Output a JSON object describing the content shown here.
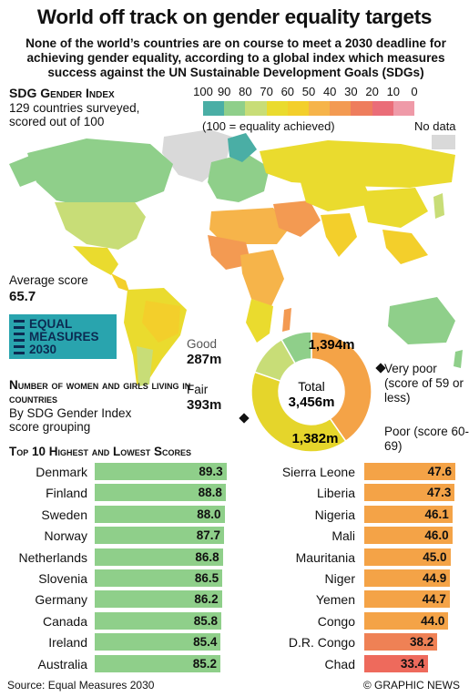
{
  "title": "World off track on gender equality targets",
  "subtitle": "None of the world’s countries are on course to meet a 2030 deadline for achieving gender equality, according to a global index which measures success against the UN Sustainable Development Goals (SDGs)",
  "map": {
    "index_heading": "SDG Gender Index",
    "index_sub": "129 countries surveyed, scored out of 100",
    "scale_labels": [
      "100",
      "90",
      "80",
      "70",
      "60",
      "50",
      "40",
      "30",
      "20",
      "10",
      "0"
    ],
    "scale_colors": [
      "#4aaea5",
      "#8fcf8a",
      "#c8dd77",
      "#eadb2e",
      "#f3cf2b",
      "#f6b44a",
      "#f39a52",
      "#ee7d5d",
      "#ea6d78",
      "#ef9aa8"
    ],
    "scale_note": "(100 = equality achieved)",
    "no_data_label": "No data",
    "no_data_color": "#d9d9d9",
    "average_label": "Average score",
    "average_value": "65.7"
  },
  "logo": {
    "line1": "EQUAL",
    "line2": "MEASURES",
    "line3": "2030"
  },
  "population": {
    "heading": "Number of women and girls living in countries",
    "sub": "By SDG Gender Index score grouping",
    "total_label": "Total",
    "total_value": "3,456m",
    "good_label": "Good",
    "good_value": "287m",
    "fair_label": "Fair",
    "fair_value": "393m",
    "very_poor_label": "Very poor (score of 59 or less)",
    "very_poor_value": "1,394m",
    "poor_label": "Poor (score 60-69)",
    "poor_value": "1,382m"
  },
  "chart_data": [
    {
      "type": "pie",
      "title": "Number of women and girls living in countries",
      "categories": [
        "Very poor",
        "Poor",
        "Fair",
        "Good"
      ],
      "values": [
        1394,
        1382,
        393,
        287
      ],
      "colors": [
        "#f4a347",
        "#e5d52b",
        "#c8dd77",
        "#8fcf8a"
      ],
      "unit": "m"
    },
    {
      "type": "bar",
      "title": "Top 10 highest and lowest scores",
      "highest": {
        "categories": [
          "Denmark",
          "Finland",
          "Sweden",
          "Norway",
          "Netherlands",
          "Slovenia",
          "Germany",
          "Canada",
          "Ireland",
          "Australia"
        ],
        "values": [
          89.3,
          88.8,
          88.0,
          87.7,
          86.8,
          86.5,
          86.2,
          85.8,
          85.4,
          85.2
        ],
        "labels": [
          "89.3",
          "88.8",
          "88.0",
          "87.7",
          "86.8",
          "86.5",
          "86.2",
          "85.8",
          "85.4",
          "85.2"
        ],
        "color": "#8fcf8a"
      },
      "lowest": {
        "categories": [
          "Sierra Leone",
          "Liberia",
          "Nigeria",
          "Mali",
          "Mauritania",
          "Niger",
          "Yemen",
          "Congo",
          "D.R. Congo",
          "Chad"
        ],
        "values": [
          47.6,
          47.3,
          46.1,
          46.0,
          45.0,
          44.9,
          44.7,
          44.0,
          38.2,
          33.4
        ],
        "labels": [
          "47.6",
          "47.3",
          "46.1",
          "46.0",
          "45.0",
          "44.9",
          "44.7",
          "44.0",
          "38.2",
          "33.4"
        ],
        "colors": [
          "#f4a347",
          "#f4a347",
          "#f4a347",
          "#f4a347",
          "#f4a347",
          "#f4a347",
          "#f4a347",
          "#f4a347",
          "#ef8155",
          "#ee6a5c"
        ]
      }
    }
  ],
  "top10_heading": "Top 10 Highest and Lowest Scores",
  "source": "Source: Equal Measures 2030",
  "credit": "© GRAPHIC NEWS",
  "watermark": "GRAPHIC NEWS"
}
